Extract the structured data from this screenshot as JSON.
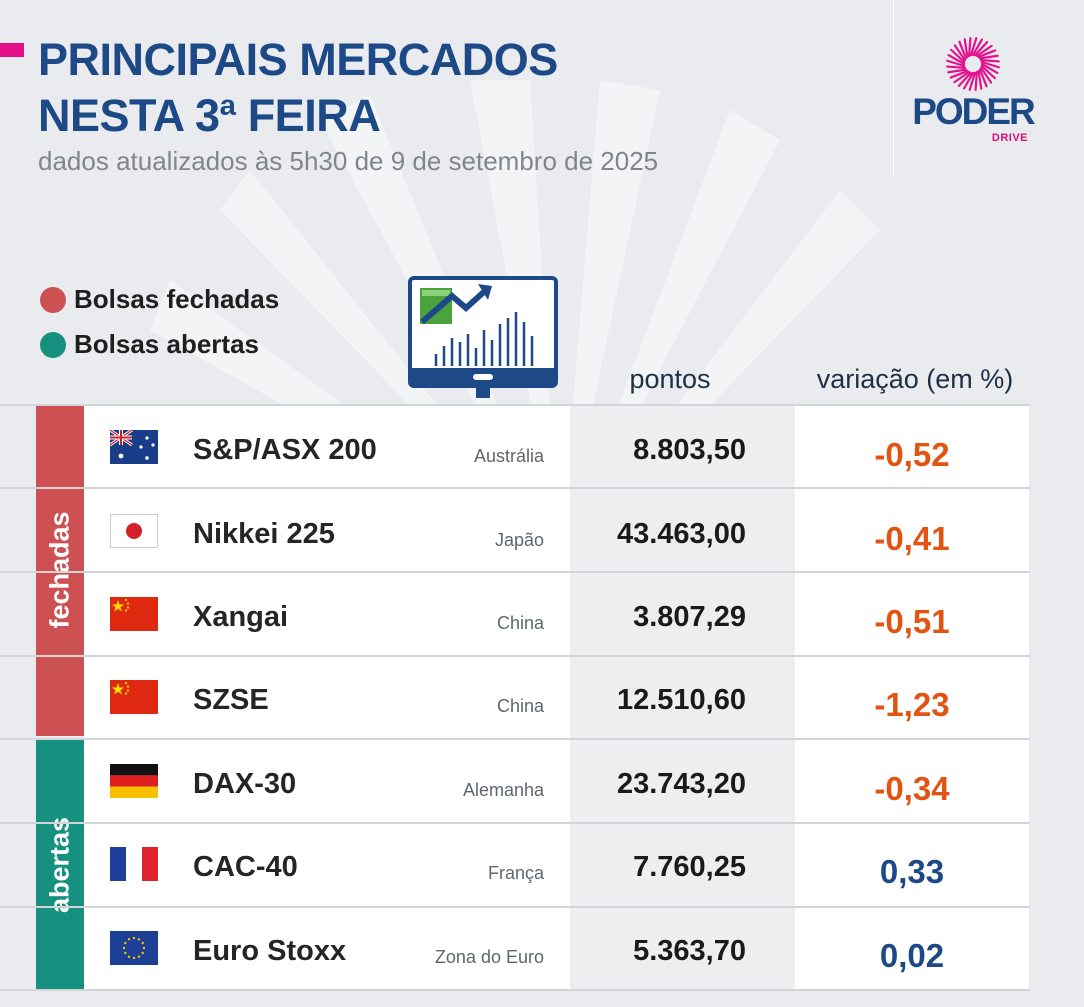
{
  "header": {
    "title_line1": "PRINCIPAIS MERCADOS",
    "title_line2": "NESTA 3ª FEIRA",
    "subtitle": "dados atualizados às 5h30 de 9 de setembro de 2025"
  },
  "logo": {
    "word": "PODER",
    "sub": "DRIVE"
  },
  "legend": [
    {
      "label": "Bolsas fechadas",
      "color": "#cd5152"
    },
    {
      "label": "Bolsas abertas",
      "color": "#16917f"
    }
  ],
  "columns": {
    "points": "pontos",
    "variation": "variação (em %)"
  },
  "groups": [
    {
      "label": "fechadas",
      "color": "#cd5152"
    },
    {
      "label": "abertas",
      "color": "#16917f"
    }
  ],
  "rows": [
    {
      "name": "S&P/ASX 200",
      "country": "Austrália",
      "points": "8.803,50",
      "variation": "-0,52",
      "flag": "australia-flag"
    },
    {
      "name": "Nikkei 225",
      "country": "Japão",
      "points": "43.463,00",
      "variation": "-0,41",
      "flag": "japan-flag"
    },
    {
      "name": "Xangai",
      "country": "China",
      "points": "3.807,29",
      "variation": "-0,51",
      "flag": "china-flag"
    },
    {
      "name": "SZSE",
      "country": "China",
      "points": "12.510,60",
      "variation": "-1,23",
      "flag": "china-flag"
    },
    {
      "name": "DAX-30",
      "country": "Alemanha",
      "points": "23.743,20",
      "variation": "-0,34",
      "flag": "germany-flag"
    },
    {
      "name": "CAC-40",
      "country": "França",
      "points": "7.760,25",
      "variation": "0,33",
      "flag": "france-flag"
    },
    {
      "name": "Euro Stoxx",
      "country": "Zona do Euro",
      "points": "5.363,70",
      "variation": "0,02",
      "flag": "eu-flag"
    }
  ],
  "colors": {
    "title": "#1d4a86",
    "negative": "#e25412",
    "positive": "#1d4a86",
    "brand_pink": "#e4128a"
  }
}
